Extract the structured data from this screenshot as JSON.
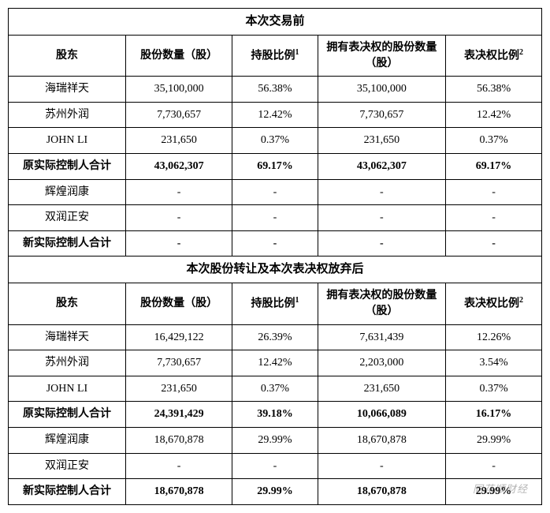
{
  "section1": {
    "title": "本次交易前",
    "columns": [
      "股东",
      "股份数量（股）",
      "持股比例 ¹",
      "拥有表决权的股份数量（股）",
      "表决权比例 ²"
    ],
    "rows": [
      {
        "cells": [
          "海瑞祥天",
          "35,100,000",
          "56.38%",
          "35,100,000",
          "56.38%"
        ],
        "bold": false
      },
      {
        "cells": [
          "苏州外润",
          "7,730,657",
          "12.42%",
          "7,730,657",
          "12.42%"
        ],
        "bold": false
      },
      {
        "cells": [
          "JOHN LI",
          "231,650",
          "0.37%",
          "231,650",
          "0.37%"
        ],
        "bold": false
      },
      {
        "cells": [
          "原实际控制人合计",
          "43,062,307",
          "69.17%",
          "43,062,307",
          "69.17%"
        ],
        "bold": true
      },
      {
        "cells": [
          "辉煌润康",
          "-",
          "-",
          "-",
          "-"
        ],
        "bold": false
      },
      {
        "cells": [
          "双润正安",
          "-",
          "-",
          "-",
          "-"
        ],
        "bold": false
      },
      {
        "cells": [
          "新实际控制人合计",
          "-",
          "-",
          "-",
          "-"
        ],
        "bold": true
      }
    ]
  },
  "section2": {
    "title": "本次股份转让及本次表决权放弃后",
    "columns": [
      "股东",
      "股份数量（股）",
      "持股比例 ¹",
      "拥有表决权的股份数量（股）",
      "表决权比例 ²"
    ],
    "rows": [
      {
        "cells": [
          "海瑞祥天",
          "16,429,122",
          "26.39%",
          "7,631,439",
          "12.26%"
        ],
        "bold": false
      },
      {
        "cells": [
          "苏州外润",
          "7,730,657",
          "12.42%",
          "2,203,000",
          "3.54%"
        ],
        "bold": false
      },
      {
        "cells": [
          "JOHN LI",
          "231,650",
          "0.37%",
          "231,650",
          "0.37%"
        ],
        "bold": false
      },
      {
        "cells": [
          "原实际控制人合计",
          "24,391,429",
          "39.18%",
          "10,066,089",
          "16.17%"
        ],
        "bold": true
      },
      {
        "cells": [
          "辉煌润康",
          "18,670,878",
          "29.99%",
          "18,670,878",
          "29.99%"
        ],
        "bold": false
      },
      {
        "cells": [
          "双润正安",
          "-",
          "-",
          "-",
          "-"
        ],
        "bold": false
      },
      {
        "cells": [
          "新实际控制人合计",
          "18,670,878",
          "29.99%",
          "18,670,878",
          "29.99%"
        ],
        "bold": true
      }
    ]
  },
  "colWidths": [
    "22%",
    "20%",
    "16%",
    "24%",
    "18%"
  ],
  "watermark": "同花顺财经"
}
